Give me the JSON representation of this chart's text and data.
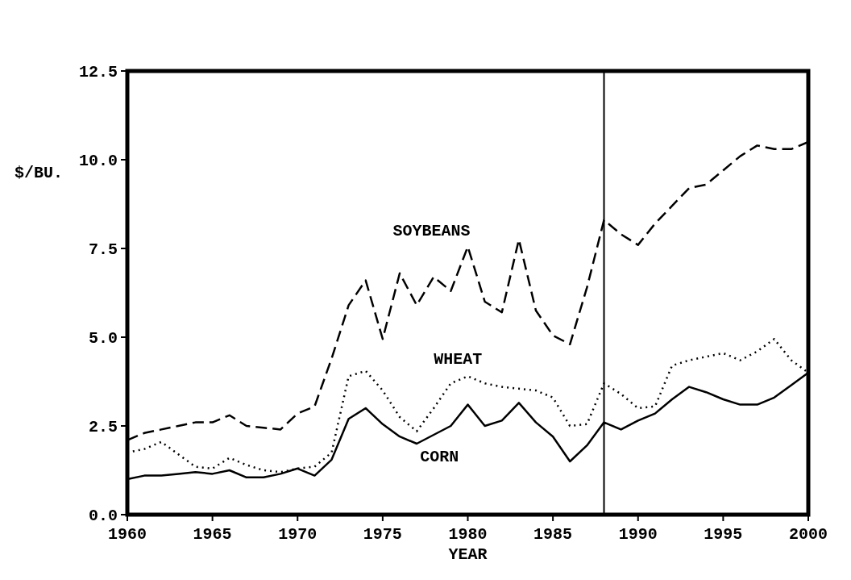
{
  "chart_data": {
    "type": "line",
    "xlabel": "YEAR",
    "ylabel": "$/BU.",
    "x": [
      1960,
      1961,
      1962,
      1963,
      1964,
      1965,
      1966,
      1967,
      1968,
      1969,
      1970,
      1971,
      1972,
      1973,
      1974,
      1975,
      1976,
      1977,
      1978,
      1979,
      1980,
      1981,
      1982,
      1983,
      1984,
      1985,
      1986,
      1987,
      1988,
      1989,
      1990,
      1991,
      1992,
      1993,
      1994,
      1995,
      1996,
      1997,
      1998,
      1999,
      2000
    ],
    "series": [
      {
        "name": "SOYBEANS",
        "color": "#000000",
        "line_style": "dashed",
        "values": [
          2.1,
          2.3,
          2.4,
          2.5,
          2.6,
          2.6,
          2.8,
          2.5,
          2.45,
          2.4,
          2.85,
          3.05,
          4.4,
          5.9,
          6.6,
          4.95,
          6.8,
          5.9,
          6.7,
          6.3,
          7.55,
          6.0,
          5.7,
          7.75,
          5.75,
          5.05,
          4.8,
          6.4,
          8.3,
          7.9,
          7.6,
          8.2,
          8.7,
          9.2,
          9.3,
          9.7,
          10.1,
          10.4,
          10.3,
          10.3,
          10.5
        ]
      },
      {
        "name": "WHEAT",
        "color": "#000000",
        "line_style": "dotted",
        "values": [
          1.75,
          1.85,
          2.05,
          1.7,
          1.35,
          1.3,
          1.6,
          1.4,
          1.25,
          1.2,
          1.3,
          1.35,
          1.75,
          3.9,
          4.05,
          3.5,
          2.75,
          2.35,
          3.0,
          3.7,
          3.9,
          3.7,
          3.6,
          3.55,
          3.5,
          3.3,
          2.5,
          2.55,
          3.7,
          3.4,
          3.0,
          3.05,
          4.2,
          4.35,
          4.45,
          4.55,
          4.35,
          4.6,
          4.95,
          4.35,
          4.0
        ]
      },
      {
        "name": "CORN",
        "color": "#000000",
        "line_style": "solid",
        "values": [
          1.0,
          1.1,
          1.1,
          1.15,
          1.2,
          1.15,
          1.25,
          1.05,
          1.05,
          1.15,
          1.3,
          1.1,
          1.55,
          2.7,
          3.0,
          2.55,
          2.2,
          2.0,
          2.25,
          2.5,
          3.1,
          2.5,
          2.65,
          3.15,
          2.6,
          2.2,
          1.5,
          1.95,
          2.6,
          2.4,
          2.65,
          2.85,
          3.25,
          3.6,
          3.45,
          3.25,
          3.1,
          3.1,
          3.3,
          3.65,
          4.0
        ]
      }
    ],
    "xlim": [
      1960,
      2000
    ],
    "xticks": [
      1960,
      1965,
      1970,
      1975,
      1980,
      1985,
      1990,
      1995,
      2000
    ],
    "ylim": [
      0,
      12.5
    ],
    "yticks": [
      {
        "value": 0,
        "label": "0.0"
      },
      {
        "value": 2.5,
        "label": "2.5"
      },
      {
        "value": 5,
        "label": "5.0"
      },
      {
        "value": 7.5,
        "label": "7.5"
      },
      {
        "value": 10,
        "label": "10.0"
      },
      {
        "value": 12.5,
        "label": "12.5"
      }
    ],
    "ref_lines": [
      {
        "axis": "x",
        "value": 1988,
        "color": "#000000",
        "line_style": "solid"
      }
    ],
    "grid": false,
    "legend": false
  }
}
